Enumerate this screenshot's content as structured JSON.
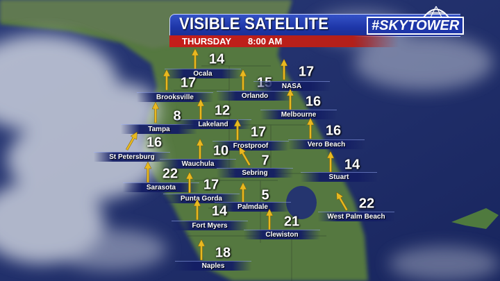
{
  "header": {
    "title": "VISIBLE SATELLITE",
    "day": "THURSDAY",
    "time": "8:00 AM",
    "logo": "#SKYTOWER"
  },
  "colors": {
    "ocean": "#1c2b66",
    "land": "#4f7a3e",
    "arrow": "#e8b820",
    "header_blue": "#1e36a8",
    "header_red": "#c51e1a"
  },
  "wind_arrow_icon": "arrow-up-icon",
  "cities": [
    {
      "name": "Ocala",
      "speed": "14",
      "direction_deg": 0
    },
    {
      "name": "Brooksville",
      "speed": "17",
      "direction_deg": 0
    },
    {
      "name": "Orlando",
      "speed": "15",
      "direction_deg": 0
    },
    {
      "name": "NASA",
      "speed": "17",
      "direction_deg": 0
    },
    {
      "name": "Melbourne",
      "speed": "16",
      "direction_deg": 0
    },
    {
      "name": "Tampa",
      "speed": "8",
      "direction_deg": 0
    },
    {
      "name": "Lakeland",
      "speed": "12",
      "direction_deg": 0
    },
    {
      "name": "Frostproof",
      "speed": "17",
      "direction_deg": 0
    },
    {
      "name": "Vero Beach",
      "speed": "16",
      "direction_deg": 0
    },
    {
      "name": "St Petersburg",
      "speed": "16",
      "direction_deg": 30
    },
    {
      "name": "Wauchula",
      "speed": "10",
      "direction_deg": 0
    },
    {
      "name": "Sebring",
      "speed": "7",
      "direction_deg": -30
    },
    {
      "name": "Stuart",
      "speed": "14",
      "direction_deg": 0
    },
    {
      "name": "Sarasota",
      "speed": "22",
      "direction_deg": 0
    },
    {
      "name": "Punta Gorda",
      "speed": "17",
      "direction_deg": 0
    },
    {
      "name": "Palmdale",
      "speed": "5",
      "direction_deg": 0
    },
    {
      "name": "West Palm Beach",
      "speed": "22",
      "direction_deg": -30
    },
    {
      "name": "Fort Myers",
      "speed": "14",
      "direction_deg": 0
    },
    {
      "name": "Clewiston",
      "speed": "21",
      "direction_deg": 0
    },
    {
      "name": "Naples",
      "speed": "18",
      "direction_deg": 0
    }
  ]
}
